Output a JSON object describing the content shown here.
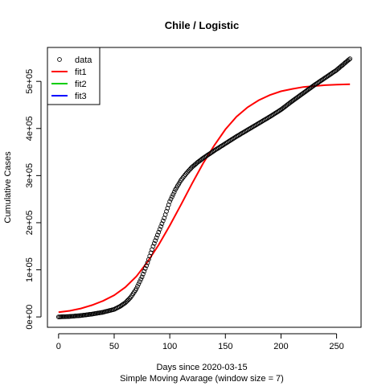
{
  "chart_data": {
    "type": "scatter",
    "title": "Chile / Logistic",
    "xlabel": "Days since 2020-03-15",
    "xlabel_sub": "Simple Moving Avarage (window size = 7)",
    "ylabel": "Cumulative Cases",
    "xlim": [
      -10,
      272
    ],
    "ylim": [
      -22000,
      572000
    ],
    "x_ticks": [
      0,
      50,
      100,
      150,
      200,
      250
    ],
    "x_tick_labels": [
      "0",
      "50",
      "100",
      "150",
      "200",
      "250"
    ],
    "y_ticks": [
      0,
      100000,
      200000,
      300000,
      400000,
      500000
    ],
    "y_tick_labels": [
      "0e+00",
      "1e+05",
      "2e+05",
      "3e+05",
      "4e+05",
      "5e+05"
    ],
    "grid": false,
    "legend_position": "top-left",
    "series": [
      {
        "name": "data",
        "style": "points",
        "color": "#000000",
        "x": [
          0,
          10,
          20,
          30,
          40,
          50,
          55,
          60,
          65,
          70,
          75,
          80,
          85,
          90,
          95,
          100,
          105,
          110,
          115,
          120,
          125,
          130,
          135,
          140,
          150,
          160,
          170,
          180,
          190,
          200,
          210,
          220,
          230,
          240,
          250,
          262
        ],
        "y": [
          0,
          1000,
          3000,
          6000,
          10000,
          16000,
          22000,
          30000,
          42000,
          60000,
          85000,
          115000,
          150000,
          180000,
          210000,
          245000,
          270000,
          290000,
          305000,
          318000,
          328000,
          337000,
          345000,
          353000,
          368000,
          383000,
          397000,
          411000,
          425000,
          440000,
          458000,
          475000,
          492000,
          508000,
          524000,
          548000
        ]
      },
      {
        "name": "fit1",
        "style": "line",
        "color": "#ff0000",
        "x": [
          0,
          10,
          20,
          30,
          40,
          50,
          60,
          70,
          80,
          90,
          100,
          110,
          120,
          130,
          140,
          150,
          160,
          170,
          180,
          190,
          200,
          210,
          220,
          230,
          240,
          250,
          262
        ],
        "y": [
          10000,
          13000,
          18000,
          25000,
          34000,
          46000,
          63000,
          86000,
          117000,
          153000,
          194000,
          238000,
          283000,
          326000,
          364000,
          398000,
          425000,
          445000,
          460000,
          471000,
          479000,
          484000,
          488000,
          490000,
          492000,
          493000,
          494000
        ]
      },
      {
        "name": "fit2",
        "style": "line",
        "color": "#00cd00",
        "x": [],
        "y": []
      },
      {
        "name": "fit3",
        "style": "line",
        "color": "#0000ff",
        "x": [],
        "y": []
      }
    ]
  }
}
